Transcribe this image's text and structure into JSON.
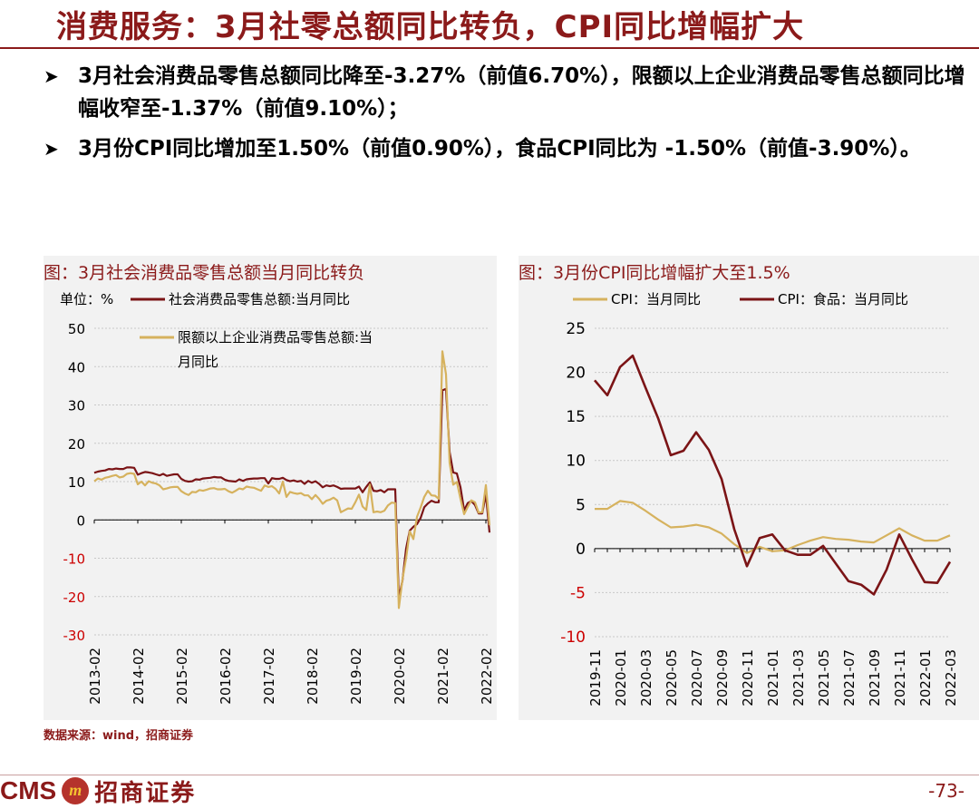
{
  "title": "消费服务：3月社零总额同比转负，CPI同比增幅扩大",
  "bullets": [
    "3月社会消费品零售总额同比降至-3.27%（前值6.70%），限额以上企业消费品零售总额同比增幅收窄至-1.37%（前值9.10%）；",
    "3月份CPI同比增加至1.50%（前值0.90%），食品CPI同比为 -1.50%（前值-3.90%）。"
  ],
  "source": "数据来源：wind，招商证券",
  "footer": {
    "logo_text": "CMS",
    "logo_mark": "m",
    "company": "招商证券",
    "page": "-73-"
  },
  "colors": {
    "dark_red": "#7b1416",
    "gold": "#d6b25e",
    "title_red": "#8b1a1a",
    "negative_label": "#cc0000"
  },
  "chart_data": [
    {
      "type": "line",
      "title": "图：3月社会消费品零售总额当月同比转负",
      "unit_label": "单位：%",
      "ylim": [
        -30,
        50
      ],
      "yticks": [
        -30,
        -20,
        -10,
        0,
        10,
        20,
        30,
        40,
        50
      ],
      "xtick_labels": [
        "2013-02",
        "2014-02",
        "2015-02",
        "2016-02",
        "2017-02",
        "2018-02",
        "2019-02",
        "2020-02",
        "2021-02",
        "2022-02"
      ],
      "x_start": "2013-02",
      "grid": true,
      "legend": "top",
      "series": [
        {
          "name": "社会消费品零售总额:当月同比",
          "color": "#7b1416",
          "values": [
            12.3,
            12.6,
            12.8,
            12.9,
            13.3,
            13.2,
            13.4,
            13.3,
            13.3,
            13.7,
            13.7,
            13.6,
            11.8,
            12.2,
            12.5,
            12.4,
            12.2,
            11.9,
            11.6,
            12.0,
            11.5,
            11.7,
            11.9,
            11.9,
            10.7,
            10.2,
            10.0,
            10.1,
            10.6,
            10.5,
            10.8,
            10.9,
            11.0,
            11.2,
            11.1,
            11.1,
            10.5,
            10.2,
            10.1,
            10.0,
            10.6,
            10.2,
            10.6,
            10.7,
            10.8,
            10.8,
            10.9,
            10.9,
            9.5,
            10.9,
            10.7,
            10.7,
            11.0,
            10.4,
            10.1,
            10.3,
            10.0,
            10.2,
            9.4,
            10.2,
            9.7,
            10.1,
            9.4,
            8.5,
            9.0,
            8.8,
            9.0,
            8.6,
            8.1,
            8.2,
            8.2,
            8.2,
            8.2,
            8.7,
            7.2,
            8.6,
            9.8,
            7.6,
            7.5,
            7.8,
            7.2,
            8.0,
            8.0,
            8.0,
            -20.5,
            -15.8,
            -7.5,
            -2.8,
            -1.8,
            -1.1,
            0.5,
            3.3,
            4.3,
            5.0,
            4.6,
            4.6,
            33.8,
            34.2,
            17.7,
            12.4,
            12.1,
            8.5,
            2.5,
            4.4,
            4.9,
            3.9,
            1.7,
            1.7,
            6.7,
            -3.3
          ]
        },
        {
          "name": "限额以上企业消费品零售总额:当月同比",
          "color": "#d6b25e",
          "values": [
            10.1,
            10.8,
            10.5,
            11.0,
            11.2,
            11.5,
            11.7,
            11.1,
            11.3,
            12.0,
            12.2,
            12.0,
            9.3,
            10.0,
            9.0,
            10.1,
            9.7,
            9.5,
            9.0,
            8.0,
            8.2,
            8.5,
            8.6,
            8.6,
            7.5,
            6.9,
            6.5,
            7.3,
            7.2,
            7.8,
            7.6,
            7.9,
            8.2,
            8.3,
            8.0,
            8.0,
            8.1,
            7.5,
            7.1,
            7.6,
            8.2,
            8.0,
            8.7,
            8.5,
            8.4,
            8.0,
            7.6,
            9.0,
            8.6,
            8.8,
            8.1,
            6.9,
            10.0,
            6.0,
            7.3,
            7.0,
            6.8,
            7.0,
            6.4,
            6.4,
            5.4,
            6.5,
            5.5,
            4.2,
            5.0,
            5.3,
            5.8,
            5.1,
            2.0,
            2.5,
            3.0,
            2.9,
            4.6,
            6.6,
            3.5,
            2.6,
            9.2,
            2.0,
            2.2,
            2.0,
            2.4,
            3.8,
            4.5,
            4.4,
            -23.0,
            -15.5,
            -10.0,
            -3.0,
            -5.0,
            0.8,
            3.2,
            6.0,
            7.6,
            6.4,
            6.3,
            5.5,
            44.0,
            38.0,
            14.9,
            9.2,
            9.9,
            5.5,
            1.5,
            3.4,
            5.1,
            4.6,
            1.9,
            2.0,
            9.1,
            -1.4
          ]
        }
      ]
    },
    {
      "type": "line",
      "title": "图：3月份CPI同比增幅扩大至1.5%",
      "ylim": [
        -10,
        25
      ],
      "yticks": [
        -10,
        -5,
        0,
        5,
        10,
        15,
        20,
        25
      ],
      "x": [
        "2019-11",
        "2019-12",
        "2020-01",
        "2020-02",
        "2020-03",
        "2020-04",
        "2020-05",
        "2020-06",
        "2020-07",
        "2020-08",
        "2020-09",
        "2020-10",
        "2020-11",
        "2020-12",
        "2021-01",
        "2021-02",
        "2021-03",
        "2021-04",
        "2021-05",
        "2021-06",
        "2021-07",
        "2021-08",
        "2021-09",
        "2021-10",
        "2021-11",
        "2021-12",
        "2022-01",
        "2022-02",
        "2022-03"
      ],
      "xtick_labels": [
        "2019-11",
        "2020-01",
        "2020-03",
        "2020-05",
        "2020-07",
        "2020-09",
        "2020-11",
        "2021-01",
        "2021-03",
        "2021-05",
        "2021-07",
        "2021-09",
        "2021-11",
        "2022-01",
        "2022-03"
      ],
      "grid": true,
      "legend": "top",
      "series": [
        {
          "name": "CPI：当月同比",
          "color": "#d6b25e",
          "values": [
            4.5,
            4.5,
            5.4,
            5.2,
            4.3,
            3.3,
            2.4,
            2.5,
            2.7,
            2.4,
            1.7,
            0.5,
            -0.5,
            0.2,
            -0.3,
            -0.2,
            0.4,
            0.9,
            1.3,
            1.1,
            1.0,
            0.8,
            0.7,
            1.5,
            2.3,
            1.5,
            0.9,
            0.9,
            1.5
          ]
        },
        {
          "name": "CPI：食品：当月同比",
          "color": "#7b1416",
          "values": [
            19.1,
            17.4,
            20.6,
            21.9,
            18.3,
            14.8,
            10.6,
            11.1,
            13.2,
            11.2,
            7.9,
            2.2,
            -2.0,
            1.2,
            1.6,
            -0.2,
            -0.7,
            -0.7,
            0.3,
            -1.7,
            -3.7,
            -4.1,
            -5.2,
            -2.4,
            1.6,
            -1.2,
            -3.8,
            -3.9,
            -1.5
          ]
        }
      ]
    }
  ]
}
